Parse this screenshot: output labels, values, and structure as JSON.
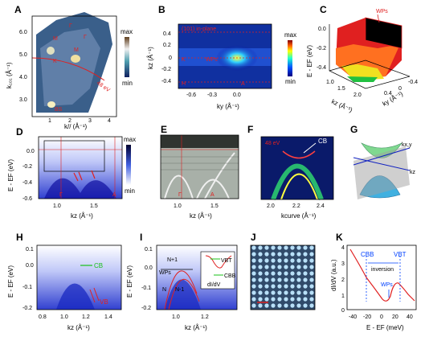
{
  "panels": {
    "A": {
      "label": "A",
      "ylabel": "k₁₀₁ (Å⁻¹)",
      "xlabel": "k// (Å⁻¹)",
      "yticks": [
        "6.0",
        "5.0",
        "4.0",
        "3.0"
      ],
      "xticks": [
        "1",
        "2",
        "3",
        "4"
      ],
      "points": [
        "Γ",
        "Γ",
        "M",
        "M",
        "K",
        "BS"
      ],
      "annot": "48 eV",
      "cbar": {
        "max": "max",
        "min": "min"
      }
    },
    "B": {
      "label": "B",
      "ylabel": "kz (Å⁻¹)",
      "xlabel": "ky (Å⁻¹)",
      "yticks": [
        "0.4",
        "0.2",
        "0",
        "-0.2",
        "-0.4"
      ],
      "xticks": [
        "-0.6",
        "-0.3",
        "0.0"
      ],
      "title": "(101) in-plane",
      "points": [
        "K",
        "WPs",
        "H",
        "A"
      ],
      "cbar": {
        "max": "max",
        "min": "min"
      }
    },
    "C": {
      "label": "C",
      "zlabel": "E - EF (eV)",
      "zticks": [
        "0.0",
        "-0.2",
        "-0.4"
      ],
      "annot": "WPs",
      "xlabel": "kz (Å⁻¹)",
      "ylabel": "ky (Å⁻¹)",
      "xticks": [
        "1.0",
        "1.5",
        "2.0"
      ],
      "yticks": [
        "0.4",
        "0",
        "-0.4"
      ]
    },
    "D": {
      "label": "D",
      "ylabel": "E - EF (eV)",
      "xlabel": "kz (Å⁻¹)",
      "yticks": [
        "0.0",
        "-0.2",
        "-0.4",
        "-0.6"
      ],
      "xticks": [
        "1.0",
        "1.5"
      ],
      "points": [
        "Γ",
        "A"
      ],
      "cbar": {
        "max": "max",
        "min": "min"
      }
    },
    "E": {
      "label": "E",
      "xlabel": "kz (Å⁻¹)",
      "xticks": [
        "1.0",
        "1.5"
      ],
      "points": [
        "Γ",
        "A"
      ]
    },
    "F": {
      "label": "F",
      "annot": "48 eV",
      "xlabel": "kcurve (Å⁻¹)",
      "xticks": [
        "2.0",
        "2.2",
        "2.4"
      ],
      "points": [
        "CB"
      ]
    },
    "G": {
      "label": "G",
      "axes": [
        "kx,y",
        "kz"
      ]
    },
    "H": {
      "label": "H",
      "ylabel": "E - EF (eV)",
      "xlabel": "kz (Å⁻¹)",
      "yticks": [
        "0.1",
        "0.0",
        "-0.1",
        "-0.2"
      ],
      "xticks": [
        "0.8",
        "1.0",
        "1.2",
        "1.4"
      ],
      "points": [
        "CB",
        "VB"
      ]
    },
    "I": {
      "label": "I",
      "ylabel": "E - EF (eV)",
      "xlabel": "kz (Å⁻¹)",
      "yticks": [
        "0.1",
        "0.0",
        "-0.1",
        "-0.2"
      ],
      "xticks": [
        "1.0",
        "1.2"
      ],
      "points": [
        "N+1",
        "WPs",
        "N",
        "N-1",
        "VBT",
        "CBB"
      ],
      "inset": "dI/dV"
    },
    "J": {
      "label": "J"
    },
    "K": {
      "label": "K",
      "ylabel": "dI/dV (a.u.)",
      "xlabel": "E - EF (meV)",
      "yticks": [
        "4",
        "3",
        "2",
        "1",
        "0"
      ],
      "xticks": [
        "-40",
        "-20",
        "0",
        "20",
        "40"
      ],
      "annot": {
        "cbb": "CBB",
        "vbt": "VBT",
        "inversion": "inversion",
        "wps": "WPs"
      }
    }
  },
  "colors": {
    "accent": "#e02020",
    "wps": "#ff2020",
    "green": "#18c018"
  }
}
